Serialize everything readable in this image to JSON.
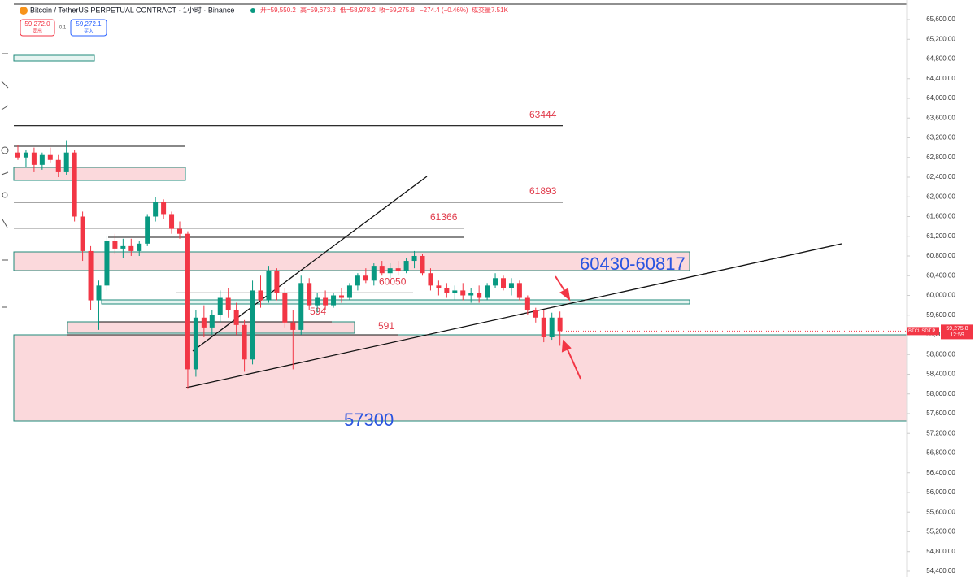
{
  "header": {
    "symbol": "Bitcoin / TetherUS PERPETUAL CONTRACT · 1小时 · Binance",
    "open": "开=59,550.2",
    "high": "高=59,673.3",
    "low": "低=58,978.2",
    "close": "收=59,275.8",
    "change": "−274.4 (−0.46%)",
    "volume": "成交量7.51K"
  },
  "order": {
    "sell_price": "59,272.0",
    "sell_label": "卖出",
    "size": "0.1",
    "buy_price": "59,272.1",
    "buy_label": "买入"
  },
  "price_tag": {
    "symbol": "BTCUSDT.P",
    "price": "59,275.8",
    "countdown": "12:59"
  },
  "chart_data": {
    "type": "candlestick",
    "up_color": "#089981",
    "down_color": "#f23645",
    "open": [
      62900,
      62800,
      62900,
      62650,
      62850,
      62750,
      62500,
      62900,
      61600,
      60900,
      59900,
      60200,
      61100,
      60950,
      61000,
      60900,
      61050,
      61600,
      61900,
      61650,
      61350,
      61250,
      58500,
      59550,
      59350,
      59600,
      59950,
      59700,
      59400,
      58700,
      60100,
      59900,
      60500,
      60050,
      59450,
      59300,
      60250,
      59800,
      59950,
      59800,
      60000,
      59950,
      60200,
      60400,
      60300,
      60600,
      60450,
      60550,
      60500,
      60700,
      60800,
      60450,
      60200,
      60150,
      60050,
      60100,
      60000,
      60050,
      59950,
      60200,
      60350,
      60150,
      60250,
      59950,
      59700,
      59550,
      59150,
      59550.2
    ],
    "high": [
      63050,
      62950,
      63000,
      62900,
      63000,
      62850,
      63150,
      62950,
      61700,
      61000,
      60300,
      61200,
      61250,
      61150,
      61150,
      61100,
      61650,
      62000,
      61950,
      61700,
      61500,
      61300,
      59700,
      59800,
      59700,
      60100,
      60150,
      59850,
      59500,
      60300,
      60400,
      60600,
      60550,
      60150,
      59700,
      60400,
      60350,
      60050,
      60100,
      60050,
      60150,
      60250,
      60450,
      60550,
      60650,
      60700,
      60650,
      60700,
      60750,
      60900,
      60850,
      60550,
      60300,
      60250,
      60200,
      60250,
      60150,
      60200,
      60250,
      60450,
      60400,
      60350,
      60300,
      60000,
      59750,
      59700,
      59650,
      59673.3
    ],
    "low": [
      62750,
      62600,
      62500,
      62550,
      62700,
      62400,
      62450,
      61500,
      60700,
      59700,
      59300,
      60100,
      60850,
      60750,
      60800,
      60800,
      61000,
      61500,
      61550,
      61250,
      61150,
      58100,
      58350,
      59150,
      59200,
      59450,
      59550,
      59200,
      58450,
      58600,
      59750,
      59850,
      59900,
      59350,
      58500,
      59200,
      59700,
      59650,
      59700,
      59750,
      59850,
      59900,
      60100,
      60250,
      60200,
      60400,
      60350,
      60400,
      60450,
      60550,
      60400,
      60100,
      60000,
      59950,
      59900,
      59900,
      59850,
      59850,
      59900,
      60150,
      60100,
      60000,
      59900,
      59600,
      59450,
      59050,
      59100,
      58978.2
    ],
    "close": [
      62800,
      62900,
      62650,
      62850,
      62750,
      62500,
      62900,
      61600,
      60900,
      59900,
      60200,
      61100,
      60950,
      61000,
      60900,
      61050,
      61600,
      61900,
      61650,
      61350,
      61250,
      58500,
      59550,
      59350,
      59600,
      59950,
      59700,
      59400,
      58700,
      60100,
      59900,
      60500,
      60050,
      59450,
      59300,
      60250,
      59800,
      59950,
      59800,
      60000,
      59950,
      60200,
      60400,
      60300,
      60600,
      60450,
      60550,
      60500,
      60700,
      60800,
      60450,
      60200,
      60150,
      60050,
      60100,
      60000,
      60050,
      59950,
      60200,
      60350,
      60150,
      60250,
      59950,
      59700,
      59550,
      59150,
      59550.2,
      59275.8
    ],
    "ylim": [
      54284,
      65996
    ],
    "yticks": [
      {
        "value": 54400,
        "label": "54,400.00"
      },
      {
        "value": 54800,
        "label": "54,800.00"
      },
      {
        "value": 55200,
        "label": "55,200.00"
      },
      {
        "value": 55600,
        "label": "55,600.00"
      },
      {
        "value": 56000,
        "label": "56,000.00"
      },
      {
        "value": 56400,
        "label": "56,400.00"
      },
      {
        "value": 56800,
        "label": "56,800.00"
      },
      {
        "value": 57200,
        "label": "57,200.00"
      },
      {
        "value": 57600,
        "label": "57,600.00"
      },
      {
        "value": 58000,
        "label": "58,000.00"
      },
      {
        "value": 58400,
        "label": "58,400.00"
      },
      {
        "value": 58800,
        "label": "58,800.00"
      },
      {
        "value": 59200,
        "label": "59,200.00"
      },
      {
        "value": 59600,
        "label": "59,600.00"
      },
      {
        "value": 60000,
        "label": "60,000.00"
      },
      {
        "value": 60400,
        "label": "60,400.00"
      },
      {
        "value": 60800,
        "label": "60,800.00"
      },
      {
        "value": 61200,
        "label": "61,200.00"
      },
      {
        "value": 61600,
        "label": "61,600.00"
      },
      {
        "value": 62000,
        "label": "62,000.00"
      },
      {
        "value": 62400,
        "label": "62,400.00"
      },
      {
        "value": 62800,
        "label": "62,800.00"
      },
      {
        "value": 63200,
        "label": "63,200.00"
      },
      {
        "value": 63600,
        "label": "63,600.00"
      },
      {
        "value": 64000,
        "label": "64,000.00"
      },
      {
        "value": 64400,
        "label": "64,400.00"
      },
      {
        "value": 64800,
        "label": "64,800.00"
      },
      {
        "value": 65200,
        "label": "65,200.00"
      },
      {
        "value": 65600,
        "label": "65,600.00"
      }
    ],
    "levels": [
      63444,
      61893,
      61366,
      60050
    ],
    "annotations": [
      "594",
      "591",
      "60430-60817",
      "57300"
    ]
  }
}
